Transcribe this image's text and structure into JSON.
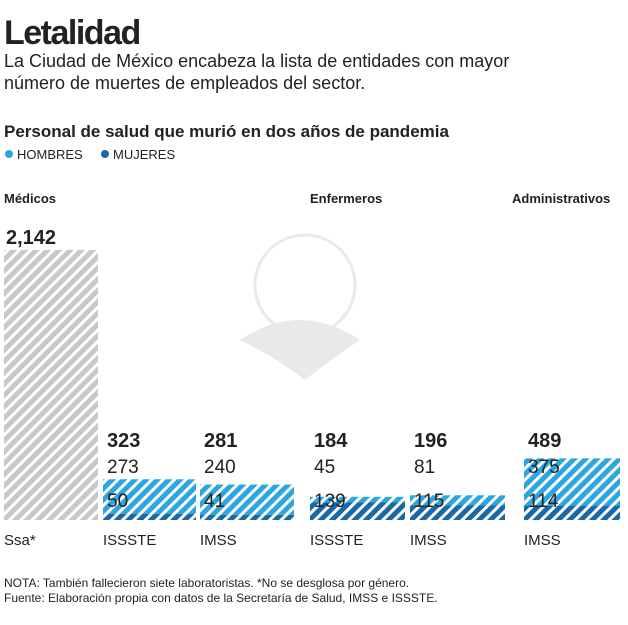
{
  "chart_data": {
    "type": "bar",
    "title": "Letalidad",
    "subtitle": "La Ciudad de México encabeza la lista de entidades con mayor número de muertes de empleados del sector.",
    "chart_title": "Personal de salud que murió en dos años de pandemia",
    "groups": [
      {
        "label": "Médicos",
        "start": 0
      },
      {
        "label": "Enfermeros",
        "start": 3
      },
      {
        "label": "Administrativos",
        "start": 5
      }
    ],
    "categories": [
      "Ssa*",
      "ISSSTE",
      "IMSS",
      "ISSSTE",
      "IMSS",
      "IMSS"
    ],
    "series": [
      {
        "name": "HOMBRES",
        "color": "#2ba6de",
        "values": [
          null,
          273,
          240,
          45,
          81,
          375
        ]
      },
      {
        "name": "MUJERES",
        "color": "#1a69a6",
        "values": [
          null,
          50,
          41,
          139,
          115,
          114
        ]
      }
    ],
    "totals": {
      "color": "#c8c8c8",
      "values": [
        2142,
        323,
        281,
        184,
        196,
        489
      ],
      "value_labels": [
        "2,142",
        "323",
        "281",
        "184",
        "196",
        "489"
      ]
    },
    "ylim": [
      0,
      2300
    ],
    "notes": [
      "NOTA: También fallecieron siete laboratoristas. *No se desglosa por género.",
      "Fuente: Elaboración propia con datos de la Secretaría de Salud, IMSS e ISSSTE."
    ]
  }
}
